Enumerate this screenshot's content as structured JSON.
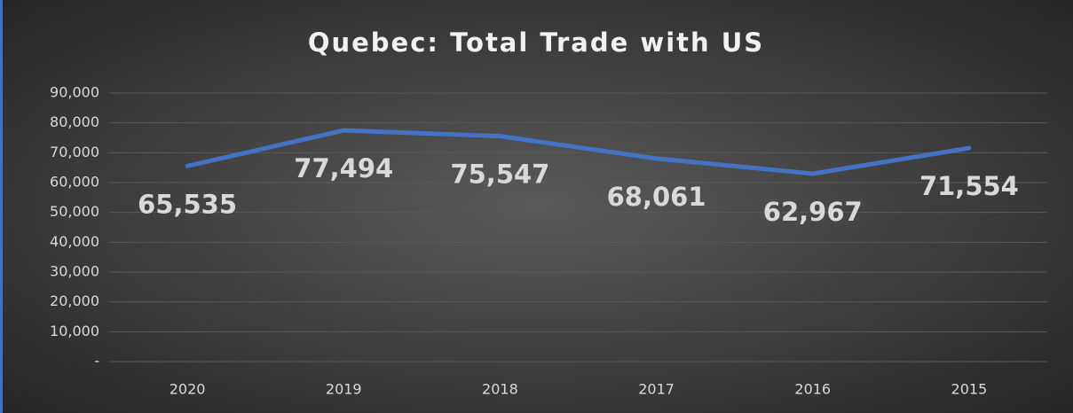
{
  "chart_data": {
    "type": "line",
    "title": "Quebec: Total Trade with US",
    "categories": [
      "2020",
      "2019",
      "2018",
      "2017",
      "2016",
      "2015"
    ],
    "values": [
      65535,
      77494,
      75547,
      68061,
      62967,
      71554
    ],
    "value_labels": [
      "65,535",
      "77,494",
      "75,547",
      "68,061",
      "62,967",
      "71,554"
    ],
    "color": "#4472c4",
    "ylim": [
      0,
      90000
    ],
    "yticks": [
      {
        "value": 0,
        "label": "-"
      },
      {
        "value": 10000,
        "label": "10,000"
      },
      {
        "value": 20000,
        "label": "20,000"
      },
      {
        "value": 30000,
        "label": "30,000"
      },
      {
        "value": 40000,
        "label": "40,000"
      },
      {
        "value": 50000,
        "label": "50,000"
      },
      {
        "value": 60000,
        "label": "60,000"
      },
      {
        "value": 70000,
        "label": "70,000"
      },
      {
        "value": 80000,
        "label": "80,000"
      },
      {
        "value": 90000,
        "label": "90,000"
      }
    ],
    "grid": true
  }
}
